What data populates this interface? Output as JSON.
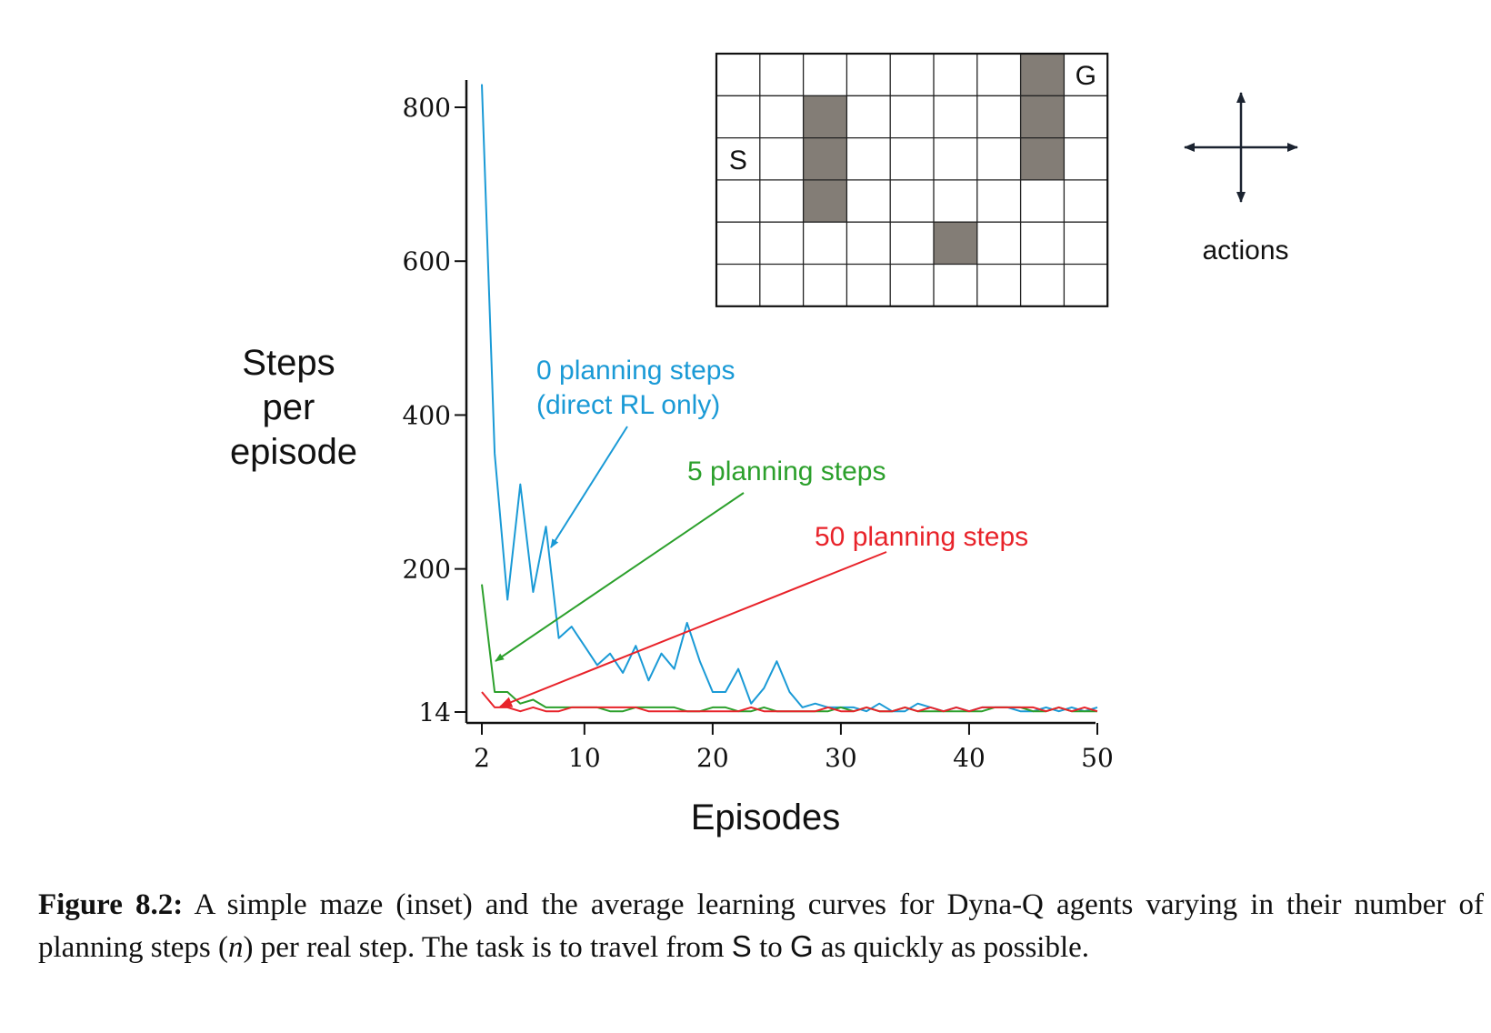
{
  "chart_data": {
    "type": "line",
    "xlabel": "Episodes",
    "ylabel_lines": [
      "Steps",
      "per",
      "episode"
    ],
    "x_ticks": [
      2,
      10,
      20,
      30,
      40,
      50
    ],
    "y_ticks": [
      14,
      200,
      400,
      600,
      800
    ],
    "xlim": [
      2,
      50
    ],
    "ylim": [
      0,
      830
    ],
    "grid": false,
    "series": [
      {
        "name": "0 planning steps (direct RL only)",
        "label_lines": [
          "0 planning steps",
          "(direct RL only)"
        ],
        "color": "#1a9ad6",
        "x": [
          2,
          3,
          4,
          5,
          6,
          7,
          8,
          9,
          10,
          11,
          12,
          13,
          14,
          15,
          16,
          17,
          18,
          19,
          20,
          21,
          22,
          23,
          24,
          25,
          26,
          27,
          28,
          29,
          30,
          31,
          32,
          33,
          34,
          35,
          36,
          37,
          38,
          39,
          40,
          41,
          42,
          43,
          44,
          45,
          46,
          47,
          48,
          49,
          50
        ],
        "y": [
          830,
          350,
          160,
          310,
          170,
          255,
          110,
          125,
          100,
          75,
          90,
          65,
          100,
          55,
          90,
          70,
          130,
          80,
          40,
          40,
          70,
          25,
          45,
          80,
          40,
          20,
          25,
          20,
          20,
          20,
          15,
          25,
          15,
          15,
          25,
          20,
          15,
          20,
          15,
          20,
          20,
          20,
          15,
          15,
          20,
          15,
          20,
          15,
          20
        ]
      },
      {
        "name": "5 planning steps",
        "label_lines": [
          "5 planning steps"
        ],
        "color": "#2ca02c",
        "x": [
          2,
          3,
          4,
          5,
          6,
          7,
          8,
          9,
          10,
          11,
          12,
          13,
          14,
          15,
          16,
          17,
          18,
          19,
          20,
          21,
          22,
          23,
          24,
          25,
          26,
          27,
          28,
          29,
          30,
          31,
          32,
          33,
          34,
          35,
          36,
          37,
          38,
          39,
          40,
          41,
          42,
          43,
          44,
          45,
          46,
          47,
          48,
          49,
          50
        ],
        "y": [
          180,
          40,
          40,
          25,
          30,
          20,
          20,
          20,
          20,
          20,
          15,
          15,
          20,
          20,
          20,
          20,
          15,
          15,
          20,
          20,
          15,
          15,
          20,
          15,
          15,
          15,
          15,
          15,
          20,
          15,
          20,
          15,
          15,
          20,
          15,
          15,
          15,
          15,
          15,
          15,
          20,
          20,
          20,
          15,
          15,
          20,
          15,
          15,
          15
        ]
      },
      {
        "name": "50 planning steps",
        "label_lines": [
          "50 planning steps"
        ],
        "color": "#e8232a",
        "x": [
          2,
          3,
          4,
          5,
          6,
          7,
          8,
          9,
          10,
          11,
          12,
          13,
          14,
          15,
          16,
          17,
          18,
          19,
          20,
          21,
          22,
          23,
          24,
          25,
          26,
          27,
          28,
          29,
          30,
          31,
          32,
          33,
          34,
          35,
          36,
          37,
          38,
          39,
          40,
          41,
          42,
          43,
          44,
          45,
          46,
          47,
          48,
          49,
          50
        ],
        "y": [
          40,
          20,
          20,
          15,
          20,
          15,
          15,
          20,
          20,
          20,
          20,
          20,
          20,
          15,
          15,
          15,
          15,
          15,
          15,
          15,
          15,
          20,
          15,
          15,
          15,
          15,
          15,
          20,
          15,
          15,
          20,
          15,
          15,
          20,
          15,
          20,
          15,
          20,
          15,
          20,
          20,
          20,
          20,
          20,
          15,
          20,
          15,
          20,
          15
        ]
      }
    ]
  },
  "maze": {
    "cols": 9,
    "rows": 6,
    "start_label": "S",
    "goal_label": "G",
    "start_cell": [
      0,
      2
    ],
    "goal_cell": [
      8,
      0
    ],
    "walls": [
      [
        2,
        1
      ],
      [
        2,
        2
      ],
      [
        2,
        3
      ],
      [
        7,
        0
      ],
      [
        7,
        1
      ],
      [
        7,
        2
      ],
      [
        5,
        4
      ]
    ],
    "wall_color": "#837d76"
  },
  "actions_label": "actions",
  "caption": {
    "label": "Figure 8.2:",
    "text_1": " A simple maze (inset) and the average learning curves for Dyna-Q agents varying in their number of planning steps (",
    "math_n": "n",
    "text_2": ") per real step. The task is to travel from ",
    "s": "S",
    "text_3": " to ",
    "g": "G",
    "text_4": " as quickly as possible."
  }
}
